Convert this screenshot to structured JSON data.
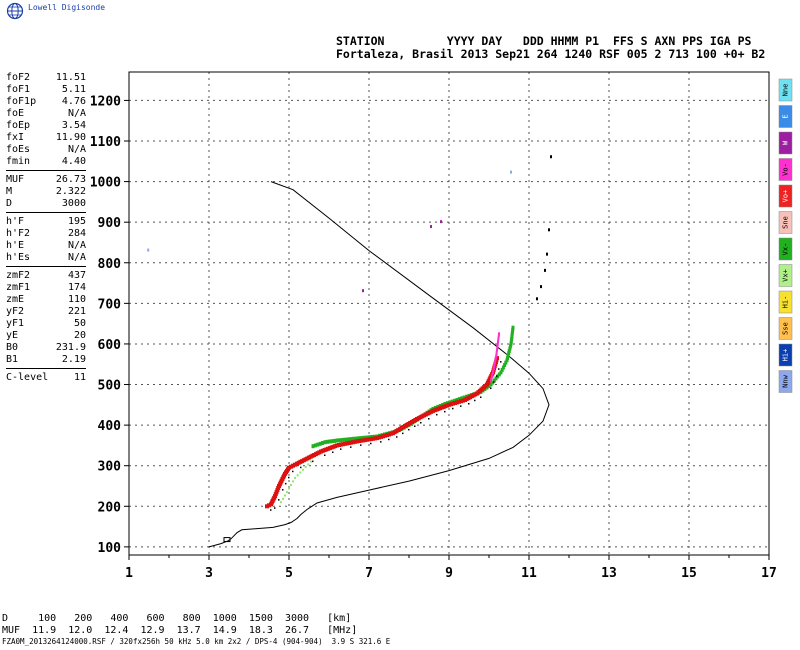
{
  "logo": {
    "text": "Lowell Digisonde",
    "icon": "globe-icon"
  },
  "header": {
    "line1": "STATION         YYYY DAY   DDD HHMM P1  FFS S AXN PPS IGA PS",
    "line2": "Fortaleza, Brasil 2013 Sep21 264 1240 RSF 005 2 713 100 +0+ B2"
  },
  "params": [
    [
      {
        "name": "foF2",
        "value": "11.51"
      },
      {
        "name": "foF1",
        "value": "5.11"
      },
      {
        "name": "foF1p",
        "value": "4.76"
      },
      {
        "name": "foE",
        "value": "N/A"
      },
      {
        "name": "foEp",
        "value": "3.54"
      },
      {
        "name": "fxI",
        "value": "11.90"
      },
      {
        "name": "foEs",
        "value": "N/A"
      },
      {
        "name": "fmin",
        "value": "4.40"
      }
    ],
    [
      {
        "name": "MUF",
        "value": "26.73"
      },
      {
        "name": "M",
        "value": "2.322"
      },
      {
        "name": "D",
        "value": "3000"
      }
    ],
    [
      {
        "name": "h'F",
        "value": "195"
      },
      {
        "name": "h'F2",
        "value": "284"
      },
      {
        "name": "h'E",
        "value": "N/A"
      },
      {
        "name": "h'Es",
        "value": "N/A"
      }
    ],
    [
      {
        "name": "zmF2",
        "value": "437"
      },
      {
        "name": "zmF1",
        "value": "174"
      },
      {
        "name": "zmE",
        "value": "110"
      },
      {
        "name": "yF2",
        "value": "221"
      },
      {
        "name": "yF1",
        "value": "50"
      },
      {
        "name": "yE",
        "value": "20"
      },
      {
        "name": "B0",
        "value": "231.9"
      },
      {
        "name": "B1",
        "value": "2.19"
      }
    ],
    [
      {
        "name": "C-level",
        "value": "11"
      }
    ]
  ],
  "legend": [
    {
      "label": "Nne",
      "color": "#6fe2f2"
    },
    {
      "label": "E",
      "color": "#3b8be8"
    },
    {
      "label": "W",
      "color": "#9b1fa0"
    },
    {
      "label": "Vo-",
      "color": "#ff2fd0"
    },
    {
      "label": "Vo+",
      "color": "#ee2222"
    },
    {
      "label": "Sne",
      "color": "#f7c0b8"
    },
    {
      "label": "Vx-",
      "color": "#20b020"
    },
    {
      "label": "Vx+",
      "color": "#b0f088"
    },
    {
      "label": "Hi-",
      "color": "#f6e030"
    },
    {
      "label": "Sse",
      "color": "#ffc050"
    },
    {
      "label": "Hi+",
      "color": "#0b3fb0"
    },
    {
      "label": "Nnw",
      "color": "#8ea8ee"
    }
  ],
  "chart_data": {
    "type": "scatter",
    "title": "",
    "xlabel": "",
    "ylabel": "",
    "xlim": [
      1,
      17
    ],
    "ylim": [
      80,
      1270
    ],
    "xticks": [
      "1",
      "3",
      "5",
      "7",
      "9",
      "11",
      "13",
      "15",
      "17"
    ],
    "yticks": [
      "100",
      "200",
      "300",
      "400",
      "500",
      "600",
      "700",
      "800",
      "900",
      "1000",
      "1100",
      "1200"
    ],
    "grid": true,
    "profile": {
      "name": "",
      "color": "#000000",
      "points": [
        [
          3.0,
          100
        ],
        [
          3.3,
          108
        ],
        [
          3.48,
          115
        ],
        [
          3.55,
          120
        ],
        [
          3.7,
          135
        ],
        [
          3.82,
          142
        ],
        [
          4.2,
          145
        ],
        [
          4.6,
          148
        ],
        [
          4.9,
          155
        ],
        [
          5.05,
          160
        ],
        [
          5.2,
          170
        ],
        [
          5.3,
          180
        ],
        [
          5.45,
          192
        ],
        [
          5.7,
          208
        ],
        [
          6.2,
          222
        ],
        [
          7.0,
          240
        ],
        [
          8.0,
          262
        ],
        [
          9.0,
          288
        ],
        [
          10.0,
          318
        ],
        [
          10.6,
          345
        ],
        [
          11.0,
          375
        ],
        [
          11.35,
          410
        ],
        [
          11.5,
          450
        ],
        [
          11.35,
          490
        ],
        [
          11.0,
          528
        ],
        [
          10.5,
          570
        ],
        [
          9.6,
          640
        ],
        [
          8.5,
          720
        ],
        [
          7.0,
          830
        ],
        [
          6.0,
          910
        ],
        [
          5.1,
          980
        ],
        [
          4.55,
          1000
        ]
      ]
    },
    "o_trace": {
      "name": "",
      "color": "#dd1111",
      "points": [
        [
          4.45,
          200
        ],
        [
          4.55,
          205
        ],
        [
          4.65,
          225
        ],
        [
          4.75,
          250
        ],
        [
          4.9,
          280
        ],
        [
          5.0,
          295
        ],
        [
          5.2,
          305
        ],
        [
          5.5,
          320
        ],
        [
          5.8,
          335
        ],
        [
          6.2,
          350
        ],
        [
          6.7,
          360
        ],
        [
          7.2,
          368
        ],
        [
          7.6,
          380
        ],
        [
          7.9,
          398
        ],
        [
          8.2,
          415
        ],
        [
          8.6,
          435
        ],
        [
          9.0,
          450
        ],
        [
          9.4,
          462
        ],
        [
          9.7,
          478
        ],
        [
          9.95,
          500
        ],
        [
          10.1,
          530
        ],
        [
          10.2,
          565
        ]
      ]
    },
    "o_cusp": {
      "name": "",
      "color": "#ff2fd0",
      "points": [
        [
          10.05,
          510
        ],
        [
          10.12,
          540
        ],
        [
          10.18,
          570
        ],
        [
          10.22,
          600
        ],
        [
          10.25,
          625
        ]
      ]
    },
    "x_trace": {
      "name": "",
      "color": "#20b020",
      "points": [
        [
          5.6,
          348
        ],
        [
          5.9,
          358
        ],
        [
          6.2,
          362
        ],
        [
          6.8,
          368
        ],
        [
          7.2,
          372
        ],
        [
          7.7,
          385
        ],
        [
          8.0,
          400
        ],
        [
          8.3,
          420
        ],
        [
          8.6,
          440
        ],
        [
          8.9,
          452
        ],
        [
          9.2,
          462
        ],
        [
          9.5,
          472
        ],
        [
          9.8,
          482
        ],
        [
          10.05,
          500
        ],
        [
          10.3,
          530
        ],
        [
          10.45,
          560
        ],
        [
          10.55,
          600
        ],
        [
          10.6,
          640
        ]
      ]
    },
    "x_lower": {
      "name": "",
      "color": "#8fe870",
      "points": [
        [
          4.8,
          210
        ],
        [
          4.95,
          235
        ],
        [
          5.15,
          270
        ],
        [
          5.35,
          290
        ],
        [
          5.55,
          310
        ]
      ]
    },
    "scatter_dots": [
      {
        "x": 1.48,
        "y": 830,
        "color": "#8ea8ee"
      },
      {
        "x": 6.85,
        "y": 730,
        "color": "#9b1fa0"
      },
      {
        "x": 8.55,
        "y": 888,
        "color": "#9b1fa0"
      },
      {
        "x": 8.8,
        "y": 900,
        "color": "#9b1fa0"
      },
      {
        "x": 10.55,
        "y": 1022,
        "color": "#8ea8ee"
      },
      {
        "x": 11.55,
        "y": 1060,
        "color": "#000000"
      },
      {
        "x": 11.5,
        "y": 880,
        "color": "#000000"
      },
      {
        "x": 11.45,
        "y": 820,
        "color": "#000000"
      },
      {
        "x": 11.4,
        "y": 780,
        "color": "#000000"
      },
      {
        "x": 11.3,
        "y": 740,
        "color": "#000000"
      },
      {
        "x": 11.2,
        "y": 710,
        "color": "#000000"
      }
    ]
  },
  "footer": {
    "d_line": "D     100   200   400   600   800  1000  1500  3000   [km]",
    "muf_line": "MUF  11.9  12.0  12.4  12.9  13.7  14.9  18.3  26.7   [MHz]",
    "file_line": "FZA0M_2013264124000.RSF / 320fx256h 50 kHz 5.0 km 2x2 / DPS-4 (904-904)  3.9 S 321.6 E"
  }
}
